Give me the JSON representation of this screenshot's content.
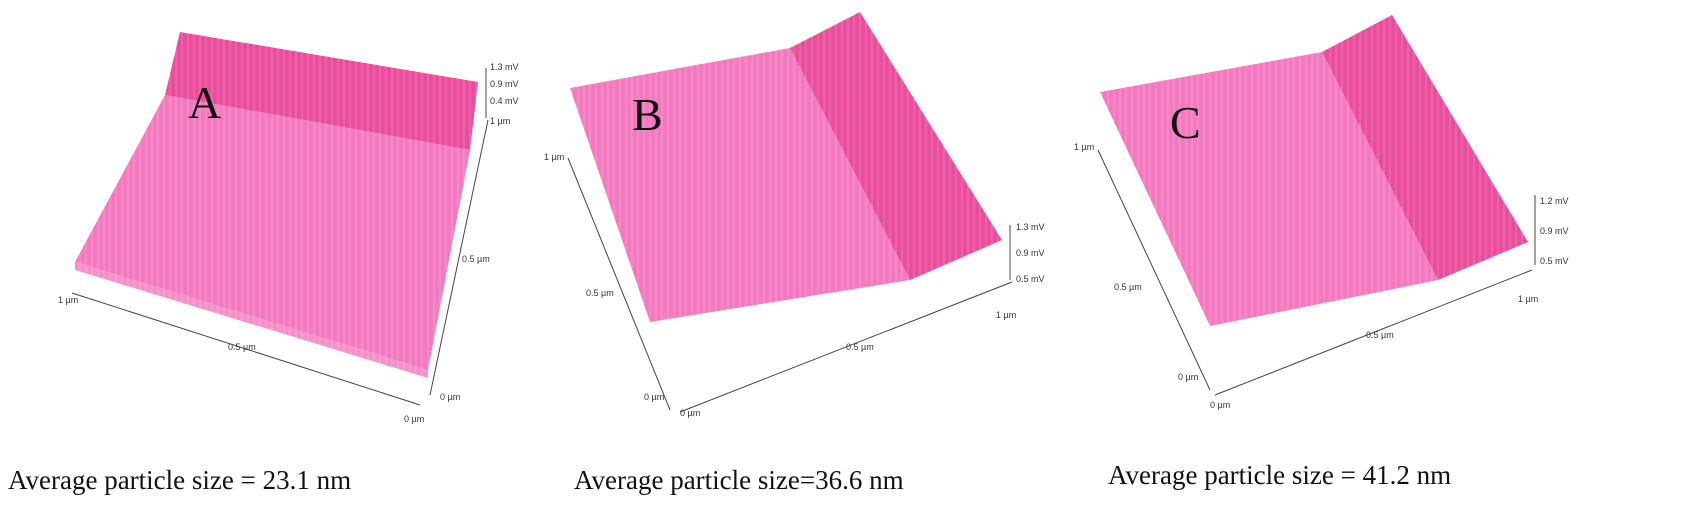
{
  "colors": {
    "surface_light": "#f47ac0",
    "surface_dark": "#e94d9c",
    "axis": "#444"
  },
  "chart_data": [
    {
      "type": "surface",
      "panel_label": "A",
      "x_ticks": [
        "1 µm",
        "0.5 µm",
        "0 µm"
      ],
      "y_ticks": [
        "0 µm",
        "0.5 µm",
        "1 µm"
      ],
      "z_ticks": [
        "1.3 mV",
        "0.9 mV",
        "0.4 mV"
      ],
      "caption": "Average particle size = 23.1 nm",
      "average_particle_size_nm": 23.1
    },
    {
      "type": "surface",
      "panel_label": "B",
      "x_ticks": [
        "1 µm",
        "0.5 µm",
        "0 µm"
      ],
      "y_ticks": [
        "0 µm",
        "0.5 µm",
        "1 µm"
      ],
      "z_ticks": [
        "1.3 mV",
        "0.9 mV",
        "0.5 mV"
      ],
      "caption": "Average particle size=36.6 nm",
      "average_particle_size_nm": 36.6
    },
    {
      "type": "surface",
      "panel_label": "C",
      "x_ticks": [
        "1 µm",
        "0.5 µm",
        "0 µm"
      ],
      "y_ticks": [
        "0 µm",
        "0.5 µm",
        "1 µm"
      ],
      "z_ticks": [
        "1.2 mV",
        "0.9 mV",
        "0.5 mV"
      ],
      "caption": "Average particle size = 41.2 nm",
      "average_particle_size_nm": 41.2
    }
  ]
}
